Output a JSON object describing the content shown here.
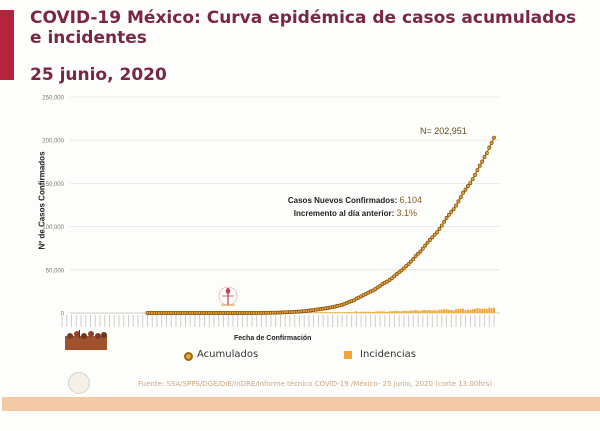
{
  "header": {
    "title": "COVID-19 México: Curva epidémica de casos acumulados e incidentes",
    "date": "25 junio, 2020"
  },
  "annotations": {
    "total_label": "N= 202,951",
    "new_cases_label": "Casos Nuevos Confirmados:",
    "new_cases_value": "6,104",
    "increase_label": "Incremento al día anterior:",
    "increase_value": "3.1%"
  },
  "legend": {
    "acumulados": "Acumulados",
    "incidencias": "Incidencias"
  },
  "footer": {
    "source": "Fuente: SSA/SPPS/DGE/DIE/InDRE/Informe técnico COVID-19 /México- 25 junio, 2020 (corte 13:00hrs)"
  },
  "colors": {
    "accent": "#b5243c",
    "title": "#7a2744",
    "acumulados": "#c98a1e",
    "acumulados_edge": "#7a4e0a",
    "incidencias": "#f5a63b",
    "band": "#f3caa5"
  },
  "chart_data": {
    "type": "line",
    "title": "",
    "xlabel": "Fecha de Confirmación",
    "ylabel": "Nº de Casos Confirmados",
    "ylim": [
      0,
      250000
    ],
    "yticks": [
      0,
      50000,
      100000,
      150000,
      200000,
      250000
    ],
    "ytick_labels": [
      "0",
      "50,000",
      "100,000",
      "150,000",
      "200,000",
      "250,000"
    ],
    "grid": true,
    "legend_position": "bottom",
    "series": [
      {
        "name": "Acumulados",
        "style": "line-markers",
        "values": [
          0,
          0,
          0,
          0,
          0,
          0,
          0,
          0,
          0,
          0,
          0,
          0,
          0,
          0,
          0,
          0,
          0,
          0,
          0,
          0,
          0,
          0,
          0,
          0,
          0,
          0,
          0,
          0,
          0,
          0,
          0,
          0,
          0,
          0,
          0,
          0,
          0,
          0,
          0,
          0,
          0,
          0,
          0,
          0,
          0,
          0,
          0,
          0,
          0,
          0,
          0,
          0,
          0,
          0,
          0,
          0,
          0,
          0,
          0,
          0,
          0,
          0,
          0,
          0,
          0,
          0,
          1,
          2,
          3,
          4,
          5,
          6,
          7,
          7,
          7,
          8,
          11,
          12,
          16,
          26,
          41,
          53,
          82,
          93,
          118,
          164,
          203,
          251,
          316,
          367,
          405,
          475,
          585,
          717,
          848,
          993,
          1094,
          1215,
          1378,
          1510,
          1688,
          1890,
          2143,
          2439,
          2785,
          3181,
          3441,
          3844,
          4219,
          4661,
          5014,
          5399,
          5847,
          6297,
          6875,
          7497,
          8261,
          8772,
          9501,
          10544,
          11633,
          12872,
          13842,
          14677,
          16752,
          17799,
          19224,
          20739,
          22088,
          23471,
          24905,
          26025,
          27634,
          29616,
          31522,
          33460,
          35022,
          36327,
          38324,
          40186,
          42595,
          45032,
          47144,
          49219,
          51633,
          54346,
          56594,
          59567,
          62527,
          65856,
          68620,
          71105,
          74560,
          78023,
          81400,
          84627,
          87512,
          90664,
          93435,
          97326,
          101238,
          105680,
          110026,
          113619,
          117103,
          120102,
          124301,
          129184,
          133974,
          139196,
          142690,
          146837,
          150264,
          154863,
          159793,
          165455,
          170485,
          175202,
          180545,
          185122,
          191410,
          196847,
          202951
        ]
      },
      {
        "name": "Incidencias",
        "style": "bar",
        "values": [
          0,
          0,
          0,
          0,
          0,
          0,
          0,
          0,
          0,
          0,
          0,
          0,
          0,
          0,
          0,
          0,
          0,
          0,
          0,
          0,
          0,
          0,
          0,
          0,
          0,
          0,
          0,
          0,
          0,
          0,
          0,
          0,
          0,
          0,
          0,
          0,
          0,
          0,
          0,
          0,
          0,
          0,
          0,
          0,
          0,
          0,
          0,
          0,
          0,
          0,
          0,
          0,
          0,
          0,
          0,
          0,
          0,
          0,
          0,
          0,
          0,
          0,
          0,
          0,
          0,
          0,
          1,
          1,
          1,
          1,
          1,
          1,
          1,
          0,
          0,
          1,
          3,
          1,
          4,
          10,
          15,
          12,
          29,
          11,
          25,
          46,
          39,
          48,
          65,
          51,
          38,
          70,
          110,
          132,
          131,
          145,
          101,
          121,
          163,
          132,
          178,
          202,
          253,
          296,
          346,
          396,
          260,
          403,
          375,
          442,
          353,
          385,
          448,
          450,
          578,
          622,
          764,
          511,
          729,
          1043,
          1089,
          1239,
          970,
          835,
          2075,
          1047,
          1425,
          1515,
          1349,
          1383,
          1434,
          1120,
          1609,
          1982,
          1906,
          1938,
          1562,
          1305,
          1997,
          1862,
          2409,
          2437,
          2112,
          2075,
          2414,
          2713,
          2248,
          2973,
          2960,
          3329,
          2764,
          2485,
          3455,
          3463,
          3377,
          3227,
          2885,
          3152,
          2771,
          3891,
          3912,
          4442,
          4346,
          3593,
          3484,
          2999,
          4199,
          4883,
          4790,
          5222,
          3494,
          4147,
          3427,
          4599,
          4930,
          5662,
          5030,
          4717,
          5343,
          4577,
          6288,
          5437,
          6104
        ]
      }
    ]
  }
}
